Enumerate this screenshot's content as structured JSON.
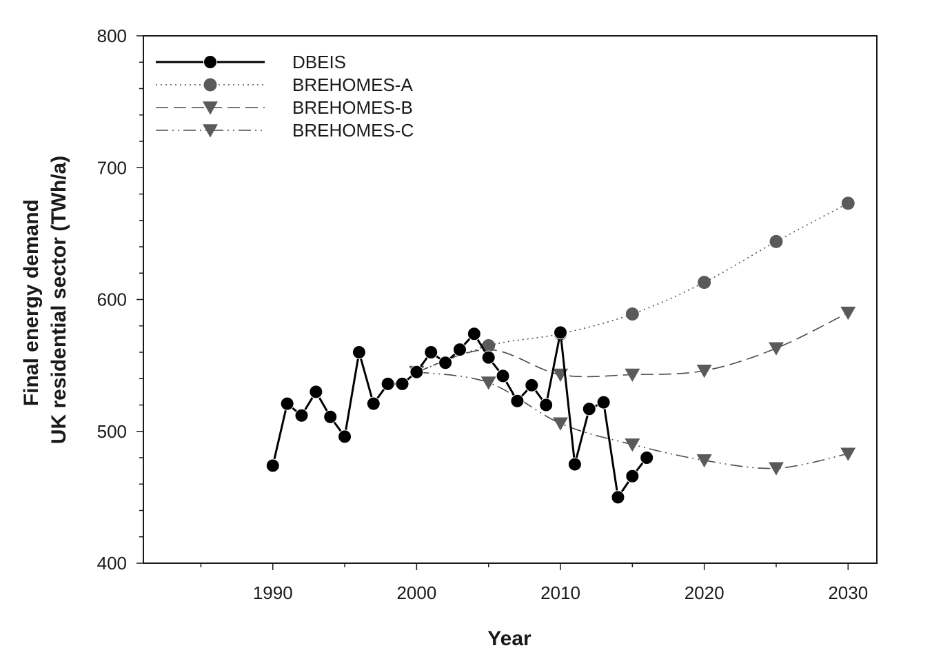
{
  "chart_data": {
    "type": "line",
    "xlabel": "Year",
    "ylabel_line1": "Final energy demand",
    "ylabel_line2": "UK residential sector (TWh/a)",
    "xlim": [
      1981,
      2032
    ],
    "ylim": [
      400,
      800
    ],
    "x_ticks": [
      1990,
      2000,
      2010,
      2020,
      2030
    ],
    "x_minor_step": 5,
    "y_ticks": [
      400,
      500,
      600,
      700,
      800
    ],
    "y_minor_step": 20,
    "legend_position": "top-left",
    "series": [
      {
        "name": "DBEIS",
        "style": "solid",
        "marker": "circle",
        "color": "#000000",
        "x": [
          1990,
          1991,
          1992,
          1993,
          1994,
          1995,
          1996,
          1997,
          1998,
          1999,
          2000,
          2001,
          2002,
          2003,
          2004,
          2005,
          2006,
          2007,
          2008,
          2009,
          2010,
          2011,
          2012,
          2013,
          2014,
          2015,
          2016
        ],
        "y": [
          474,
          521,
          512,
          530,
          511,
          496,
          560,
          521,
          536,
          536,
          545,
          560,
          552,
          562,
          574,
          556,
          542,
          523,
          535,
          520,
          575,
          475,
          517,
          522,
          450,
          466,
          480
        ]
      },
      {
        "name": "BREHOMES-A",
        "style": "dotted",
        "marker": "circle",
        "color": "#5a5a5a",
        "x": [
          2000,
          2005,
          2010,
          2015,
          2020,
          2025,
          2030
        ],
        "y": [
          545,
          565,
          574,
          589,
          613,
          644,
          673
        ]
      },
      {
        "name": "BREHOMES-B",
        "style": "dashed",
        "marker": "triangle-down",
        "color": "#5a5a5a",
        "x": [
          2000,
          2005,
          2010,
          2015,
          2020,
          2025,
          2030
        ],
        "y": [
          545,
          562,
          543,
          543,
          546,
          563,
          590
        ]
      },
      {
        "name": "BREHOMES-C",
        "style": "dash-dot-dot",
        "marker": "triangle-down",
        "color": "#5a5a5a",
        "x": [
          2000,
          2005,
          2010,
          2015,
          2020,
          2025,
          2030
        ],
        "y": [
          545,
          537,
          506,
          490,
          478,
          472,
          483
        ]
      }
    ]
  }
}
